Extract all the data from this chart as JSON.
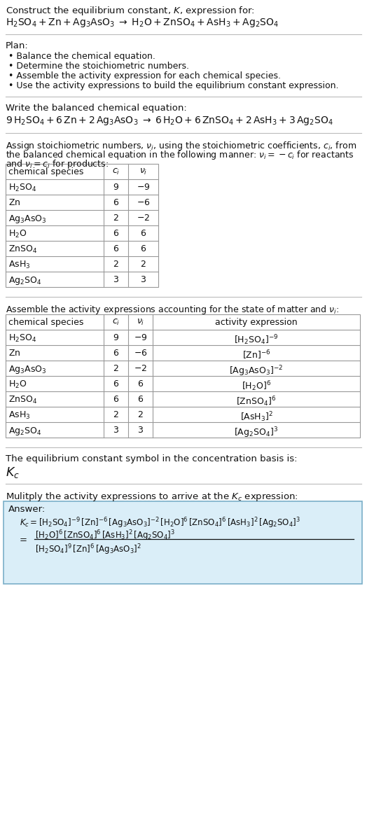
{
  "title_line1": "Construct the equilibrium constant, $K$, expression for:",
  "title_line2": "$\\mathrm{H_2SO_4 + Zn + Ag_3AsO_3 \\;\\rightarrow\\; H_2O + ZnSO_4 + AsH_3 + Ag_2SO_4}$",
  "plan_header": "Plan:",
  "plan_items": [
    "Balance the chemical equation.",
    "Determine the stoichiometric numbers.",
    "Assemble the activity expression for each chemical species.",
    "Use the activity expressions to build the equilibrium constant expression."
  ],
  "balanced_header": "Write the balanced chemical equation:",
  "balanced_eq": "$9\\,\\mathrm{H_2SO_4} + 6\\,\\mathrm{Zn} + 2\\,\\mathrm{Ag_3AsO_3} \\;\\rightarrow\\; 6\\,\\mathrm{H_2O} + 6\\,\\mathrm{ZnSO_4} + 2\\,\\mathrm{AsH_3} + 3\\,\\mathrm{Ag_2SO_4}$",
  "stoich_header1": "Assign stoichiometric numbers, $\\nu_i$, using the stoichiometric coefficients, $c_i$, from",
  "stoich_header2": "the balanced chemical equation in the following manner: $\\nu_i = -c_i$ for reactants",
  "stoich_header3": "and $\\nu_i = c_i$ for products:",
  "table1_cols": [
    "chemical species",
    "$c_i$",
    "$\\nu_i$"
  ],
  "table1_rows": [
    [
      "$\\mathrm{H_2SO_4}$",
      "9",
      "$-9$"
    ],
    [
      "$\\mathrm{Zn}$",
      "6",
      "$-6$"
    ],
    [
      "$\\mathrm{Ag_3AsO_3}$",
      "2",
      "$-2$"
    ],
    [
      "$\\mathrm{H_2O}$",
      "6",
      "6"
    ],
    [
      "$\\mathrm{ZnSO_4}$",
      "6",
      "6"
    ],
    [
      "$\\mathrm{AsH_3}$",
      "2",
      "2"
    ],
    [
      "$\\mathrm{Ag_2SO_4}$",
      "3",
      "3"
    ]
  ],
  "activity_header": "Assemble the activity expressions accounting for the state of matter and $\\nu_i$:",
  "table2_cols": [
    "chemical species",
    "$c_i$",
    "$\\nu_i$",
    "activity expression"
  ],
  "table2_rows": [
    [
      "$\\mathrm{H_2SO_4}$",
      "9",
      "$-9$",
      "$[\\mathrm{H_2SO_4}]^{-9}$"
    ],
    [
      "$\\mathrm{Zn}$",
      "6",
      "$-6$",
      "$[\\mathrm{Zn}]^{-6}$"
    ],
    [
      "$\\mathrm{Ag_3AsO_3}$",
      "2",
      "$-2$",
      "$[\\mathrm{Ag_3AsO_3}]^{-2}$"
    ],
    [
      "$\\mathrm{H_2O}$",
      "6",
      "6",
      "$[\\mathrm{H_2O}]^{6}$"
    ],
    [
      "$\\mathrm{ZnSO_4}$",
      "6",
      "6",
      "$[\\mathrm{ZnSO_4}]^{6}$"
    ],
    [
      "$\\mathrm{AsH_3}$",
      "2",
      "2",
      "$[\\mathrm{AsH_3}]^{2}$"
    ],
    [
      "$\\mathrm{Ag_2SO_4}$",
      "3",
      "3",
      "$[\\mathrm{Ag_2SO_4}]^{3}$"
    ]
  ],
  "kc_header": "The equilibrium constant symbol in the concentration basis is:",
  "kc_symbol": "$K_c$",
  "multiply_header": "Mulitply the activity expressions to arrive at the $K_c$ expression:",
  "answer_label": "Answer:",
  "answer_line1": "$K_c = [\\mathrm{H_2SO_4}]^{-9}\\,[\\mathrm{Zn}]^{-6}\\,[\\mathrm{Ag_3AsO_3}]^{-2}\\,[\\mathrm{H_2O}]^{6}\\,[\\mathrm{ZnSO_4}]^{6}\\,[\\mathrm{AsH_3}]^{2}\\,[\\mathrm{Ag_2SO_4}]^{3}$",
  "answer_line2a": "$[\\mathrm{H_2O}]^{6}\\,[\\mathrm{ZnSO_4}]^{6}\\,[\\mathrm{AsH_3}]^{2}\\,[\\mathrm{Ag_2SO_4}]^{3}$",
  "answer_eq": "=",
  "answer_line2b": "$[\\mathrm{H_2SO_4}]^{9}\\,[\\mathrm{Zn}]^{6}\\,[\\mathrm{Ag_3AsO_3}]^{2}$",
  "bg_color": "#ffffff",
  "table_border_color": "#999999",
  "answer_box_facecolor": "#daeef8",
  "answer_box_edgecolor": "#7aafc8",
  "text_color": "#111111",
  "font_size": 9.5,
  "small_font": 9.0
}
